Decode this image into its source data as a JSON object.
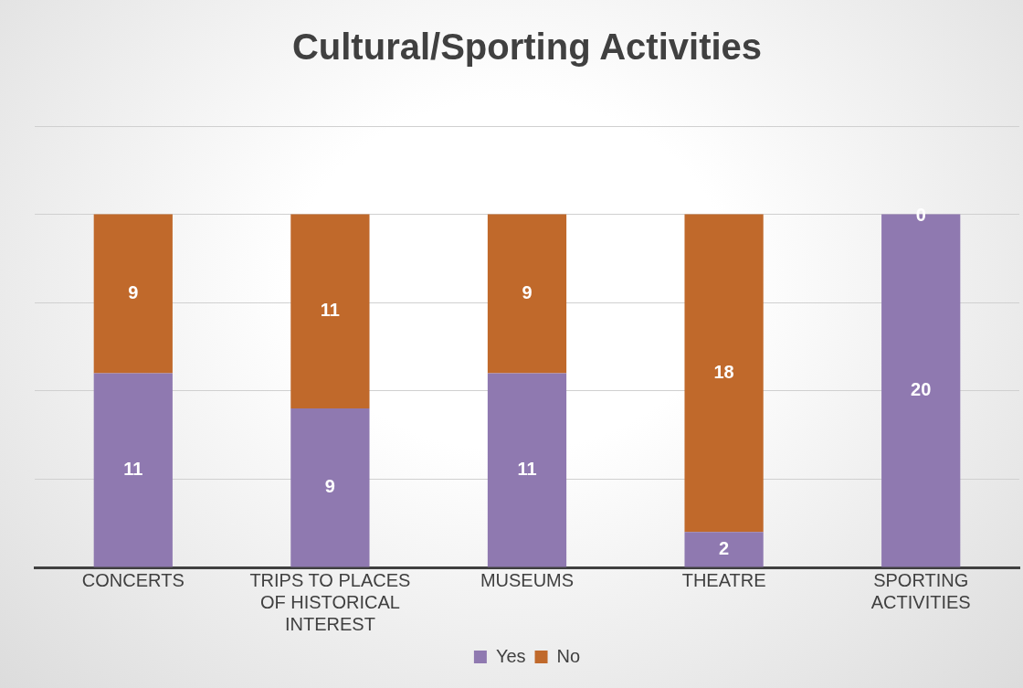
{
  "chart_data": {
    "type": "bar",
    "title": "Cultural/Sporting Activities",
    "categories": [
      "CONCERTS",
      "TRIPS TO PLACES OF HISTORICAL INTEREST",
      "MUSEUMS",
      "THEATRE",
      "SPORTING ACTIVITIES"
    ],
    "series": [
      {
        "name": "Yes",
        "color": "#8f79b0",
        "values": [
          11,
          9,
          11,
          2,
          20
        ]
      },
      {
        "name": "No",
        "color": "#c0692b",
        "values": [
          9,
          11,
          9,
          18,
          0
        ]
      }
    ],
    "stacked": true,
    "data_labels": true,
    "ylim": [
      0,
      25
    ],
    "yticks": [
      {
        "value": 0,
        "label": null
      },
      {
        "value": 5,
        "label": null
      },
      {
        "value": 10,
        "label": null
      },
      {
        "value": 15,
        "label": null
      },
      {
        "value": 20,
        "label": null
      },
      {
        "value": 25,
        "label": null
      }
    ],
    "tick_labels": "x",
    "grid": "y",
    "legend": "bottom"
  }
}
